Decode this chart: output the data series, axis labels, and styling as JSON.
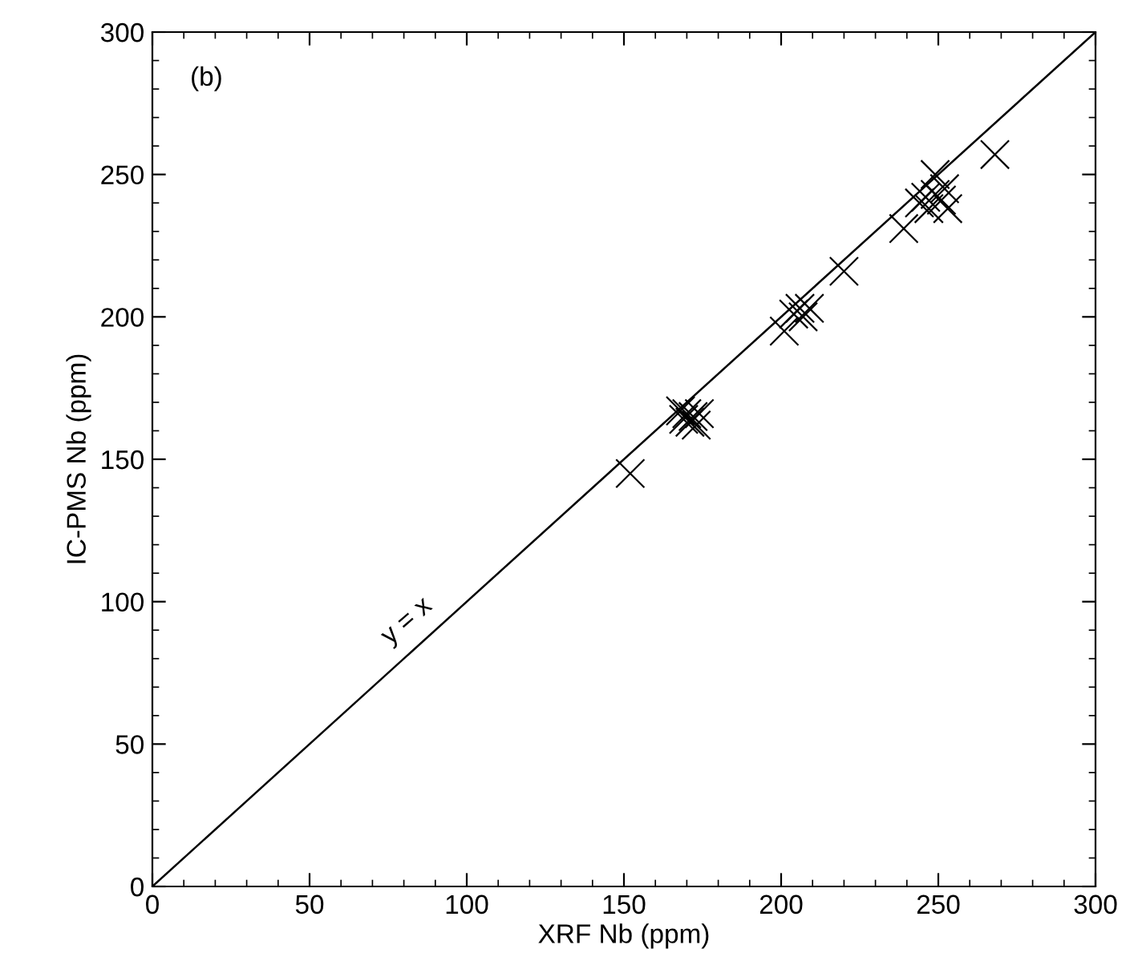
{
  "chart_data": {
    "type": "scatter",
    "xlabel": "XRF Nb (ppm)",
    "ylabel": "IC-PMS Nb (ppm)",
    "xlim": [
      0,
      300
    ],
    "ylim": [
      0,
      300
    ],
    "xticks": [
      0,
      50,
      100,
      150,
      200,
      250,
      300
    ],
    "yticks": [
      0,
      50,
      100,
      150,
      200,
      250,
      300
    ],
    "grid": false,
    "marker": "cross",
    "series": [
      {
        "color": "#000000",
        "x": [
          152,
          168,
          169,
          170,
          171,
          172,
          173,
          174,
          201,
          204,
          206,
          207,
          209,
          220,
          239,
          244,
          246,
          247,
          249,
          249,
          251,
          252,
          253,
          268
        ],
        "values": [
          145,
          167,
          164,
          166,
          163,
          165,
          162,
          166,
          195,
          201,
          203,
          200,
          203,
          216,
          231,
          240,
          242,
          238,
          250,
          243,
          241,
          245,
          238,
          257
        ]
      },
      {
        "type": "line",
        "color": "#000000",
        "marker": "none",
        "line_style": "solid",
        "x": [
          0,
          300
        ],
        "values": [
          0,
          300
        ]
      }
    ],
    "annotations": [
      "(b)",
      "y = x"
    ]
  }
}
